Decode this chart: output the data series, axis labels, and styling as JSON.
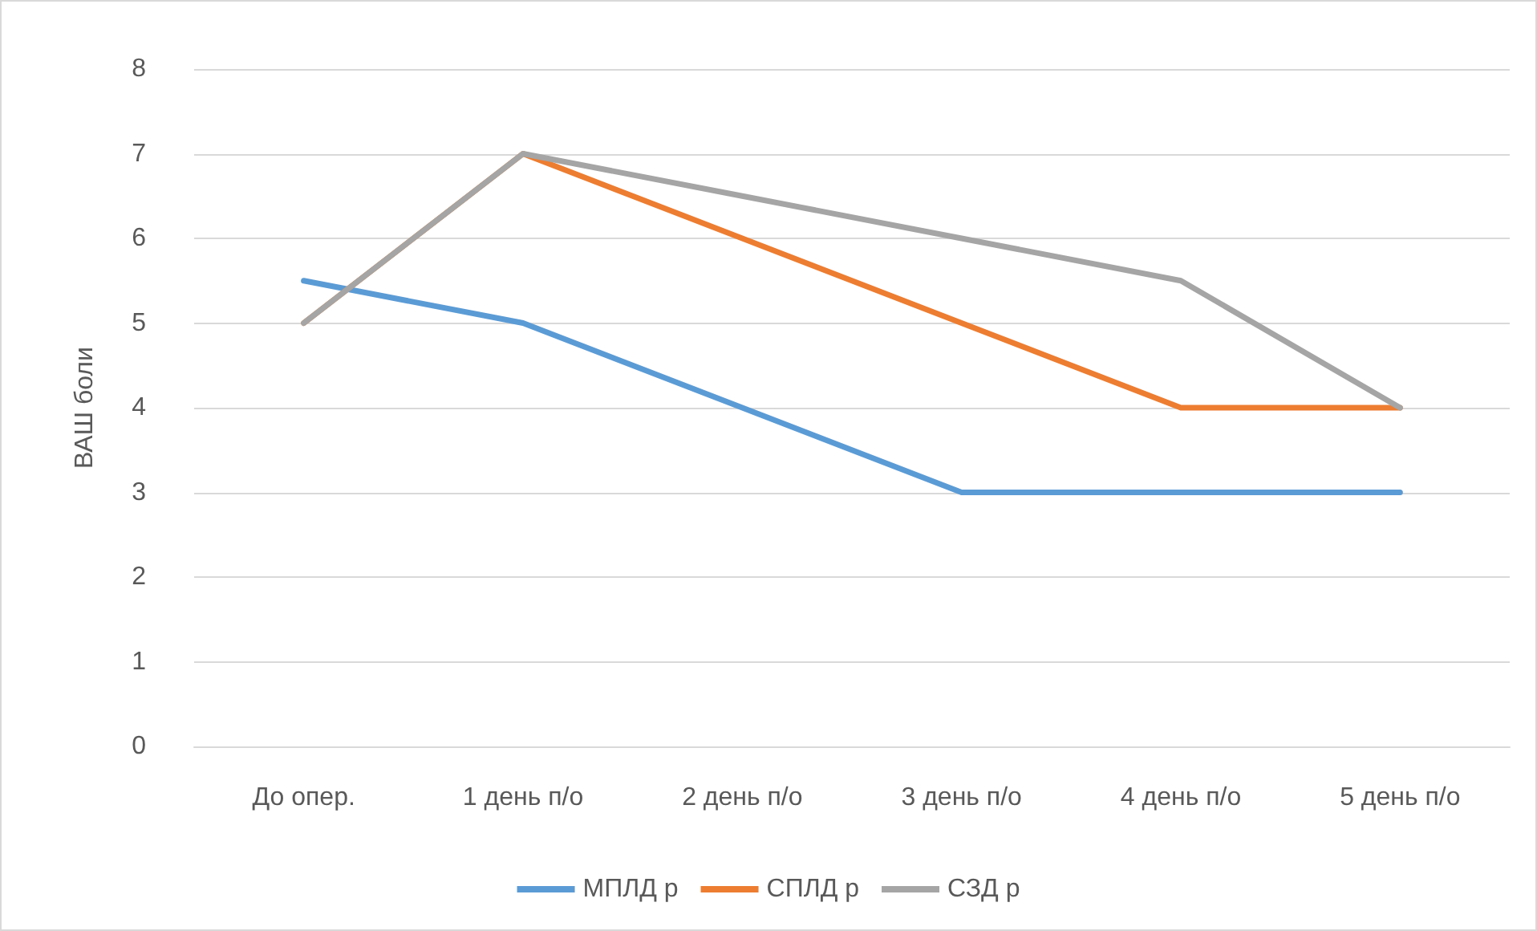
{
  "chart_data": {
    "type": "line",
    "ylabel": "ВАШ боли",
    "categories": [
      "До опер.",
      "1 день п/о",
      "2 день п/о",
      "3 день п/о",
      "4 день п/о",
      "5 день п/о"
    ],
    "series": [
      {
        "name": "МПЛД р",
        "color": "#5b9bd5",
        "values": [
          5.5,
          5,
          4,
          3,
          3,
          3
        ]
      },
      {
        "name": "СПЛД р",
        "color": "#ed7d31",
        "values": [
          5,
          7,
          6,
          5,
          4,
          4
        ]
      },
      {
        "name": "СЗД р",
        "color": "#a5a5a5",
        "values": [
          5,
          7,
          6.5,
          6,
          5.5,
          4
        ]
      }
    ],
    "ylim": [
      0,
      8
    ],
    "yticks": [
      0,
      1,
      2,
      3,
      4,
      5,
      6,
      7,
      8
    ],
    "grid": "y",
    "legend": "bottom",
    "marker": "none",
    "line_style": "solid"
  }
}
